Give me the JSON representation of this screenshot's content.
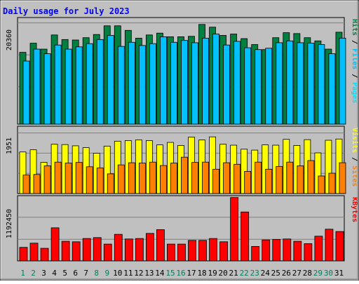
{
  "chart_data": {
    "type": "bar",
    "title": "Daily usage for July 2023",
    "days": [
      "1",
      "2",
      "3",
      "4",
      "5",
      "6",
      "7",
      "8",
      "9",
      "10",
      "11",
      "12",
      "13",
      "14",
      "15",
      "16",
      "17",
      "18",
      "19",
      "20",
      "21",
      "22",
      "23",
      "24",
      "25",
      "26",
      "27",
      "28",
      "29",
      "30",
      "31"
    ],
    "weekend_days": [
      "1",
      "2",
      "8",
      "9",
      "15",
      "16",
      "22",
      "23",
      "29",
      "30"
    ],
    "panels": [
      {
        "id": "hits",
        "scale_label": "20360",
        "ylim": [
          0,
          23000
        ],
        "series": [
          {
            "name": "Hits",
            "color": "#008040",
            "values": [
              15700,
              17700,
              16400,
              19500,
              18500,
              18400,
              18900,
              19600,
              21500,
              21500,
              20500,
              18800,
              19500,
              19900,
              19100,
              19100,
              19200,
              21800,
              21200,
              19400,
              19700,
              18700,
              17400,
              16300,
              18900,
              20000,
              19800,
              18900,
              18200,
              16400,
              20100
            ]
          },
          {
            "name": "Files",
            "color": "#00c0ff",
            "values": [
              13800,
              16400,
              15400,
              17300,
              16400,
              16900,
              17600,
              18500,
              19400,
              17000,
              17900,
              17200,
              17600,
              19100,
              17900,
              18300,
              17800,
              18800,
              19700,
              17300,
              18100,
              16700,
              16300,
              16600,
              17800,
              18200,
              17800,
              17700,
              17400,
              15400,
              18800
            ]
          },
          {
            "name": "Pages",
            "color": "#00e0ff",
            "values": [
              0,
              0,
              0,
              0,
              0,
              0,
              0,
              0,
              0,
              0,
              0,
              0,
              0,
              0,
              0,
              0,
              0,
              0,
              0,
              0,
              0,
              0,
              0,
              0,
              0,
              0,
              0,
              0,
              0,
              0,
              0
            ]
          }
        ]
      },
      {
        "id": "visits",
        "scale_label": "1951",
        "ylim": [
          0,
          2140
        ],
        "series": [
          {
            "name": "Visits",
            "color": "#ffff00",
            "values": [
              1350,
              1420,
              1010,
              1600,
              1590,
              1550,
              1490,
              1310,
              1540,
              1700,
              1720,
              1740,
              1720,
              1580,
              1660,
              1560,
              1830,
              1740,
              1840,
              1600,
              1570,
              1440,
              1410,
              1580,
              1570,
              1760,
              1560,
              1750,
              1320,
              1730,
              1770
            ]
          },
          {
            "name": "Sites",
            "color": "#ff8000",
            "values": [
              600,
              620,
              900,
              1020,
              990,
              1010,
              870,
              830,
              640,
              930,
              1000,
              990,
              1020,
              910,
              990,
              1180,
              1010,
              1020,
              790,
              1000,
              950,
              720,
              1020,
              790,
              880,
              1020,
              900,
              1070,
              570,
              660,
              1000
            ]
          }
        ]
      },
      {
        "id": "kbytes",
        "scale_label": "1192450",
        "ylim": [
          0,
          1370000
        ],
        "series": [
          {
            "name": "KBytes",
            "color": "#ff0000",
            "values": [
              290000,
              380000,
              270000,
              710000,
              420000,
              410000,
              480000,
              500000,
              360000,
              570000,
              470000,
              480000,
              590000,
              670000,
              360000,
              360000,
              440000,
              440000,
              480000,
              410000,
              1360000,
              1050000,
              310000,
              450000,
              460000,
              470000,
              420000,
              370000,
              530000,
              680000,
              630000
            ]
          }
        ]
      }
    ]
  }
}
